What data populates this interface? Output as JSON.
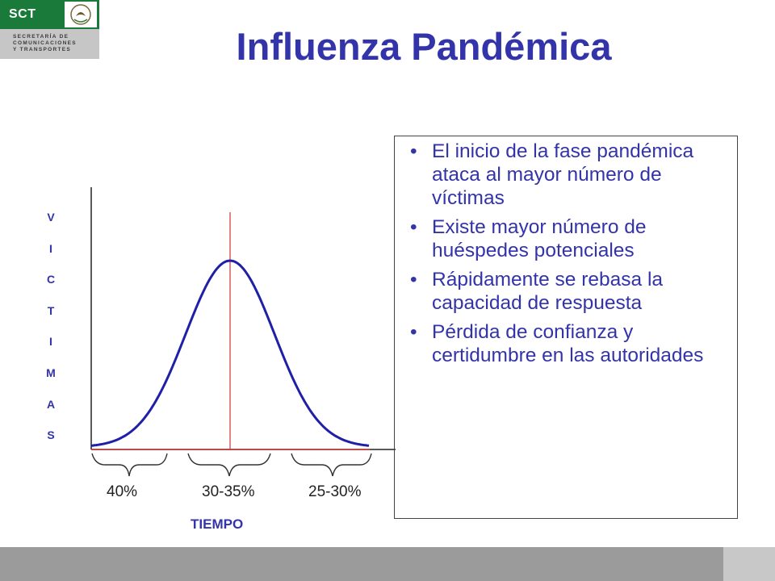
{
  "logo": {
    "abbr": "SCT",
    "line1": "SECRETARÍA DE",
    "line2": "COMUNICACIONES",
    "line3": "Y TRANSPORTES"
  },
  "title": "Influenza Pandémica",
  "bullets": [
    "El inicio de la fase pandémica ataca al mayor número de víctimas",
    "Existe mayor número de huéspedes potenciales",
    "Rápidamente se rebasa la capacidad de respuesta",
    "Pérdida de confianza y certidumbre en las autoridades"
  ],
  "chart_data": {
    "type": "line",
    "title": "",
    "xlabel": "TIEMPO",
    "ylabel": "VICTIMAS",
    "curve": "bell",
    "x_segments": [
      "40%",
      "30-35%",
      "25-30%"
    ],
    "colors": {
      "curve": "#1f1fa8",
      "peak_line": "#cc3333",
      "axis": "#222222"
    }
  }
}
